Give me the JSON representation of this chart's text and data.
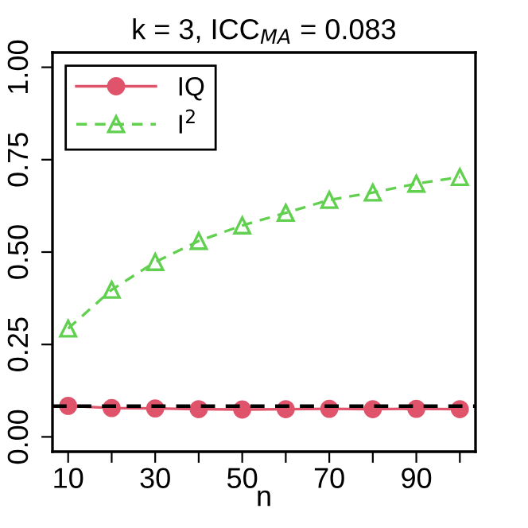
{
  "chart_data": {
    "type": "line",
    "title": "k = 3, ICC$_{MA}$ = 0.083",
    "xlabel": "n",
    "x": [
      10,
      20,
      30,
      40,
      50,
      60,
      70,
      80,
      90,
      100
    ],
    "series": [
      {
        "name": "IQ",
        "color": "#df536b",
        "marker": "circle",
        "line_style": "solid",
        "values": [
          0.084,
          0.078,
          0.077,
          0.075,
          0.074,
          0.075,
          0.076,
          0.075,
          0.076,
          0.075
        ]
      },
      {
        "name": "I$^{2}$",
        "color": "#61d04f",
        "marker": "triangle",
        "line_style": "dashed",
        "values": [
          0.293,
          0.398,
          0.473,
          0.53,
          0.572,
          0.606,
          0.641,
          0.661,
          0.685,
          0.703
        ]
      }
    ],
    "ref_lines": [
      {
        "axis": "y",
        "value": 0.083,
        "color": "#000000",
        "line_style": "dashed"
      }
    ],
    "xlim": [
      6.4,
      103.6
    ],
    "ylim": [
      -0.04,
      1.04
    ],
    "xticks": [
      10,
      {
        "value": 20,
        "label": null
      },
      30,
      {
        "value": 40,
        "label": null
      },
      50,
      {
        "value": 60,
        "label": null
      },
      70,
      {
        "value": 80,
        "label": null
      },
      90,
      {
        "value": 100,
        "label": null
      }
    ],
    "yticks": [
      {
        "value": 0,
        "label": "0.00"
      },
      {
        "value": 0.25,
        "label": "0.25"
      },
      {
        "value": 0.5,
        "label": "0.50"
      },
      {
        "value": 0.75,
        "label": "0.75"
      },
      {
        "value": 1,
        "label": "1.00"
      }
    ],
    "legend": "top left",
    "grid": false
  }
}
